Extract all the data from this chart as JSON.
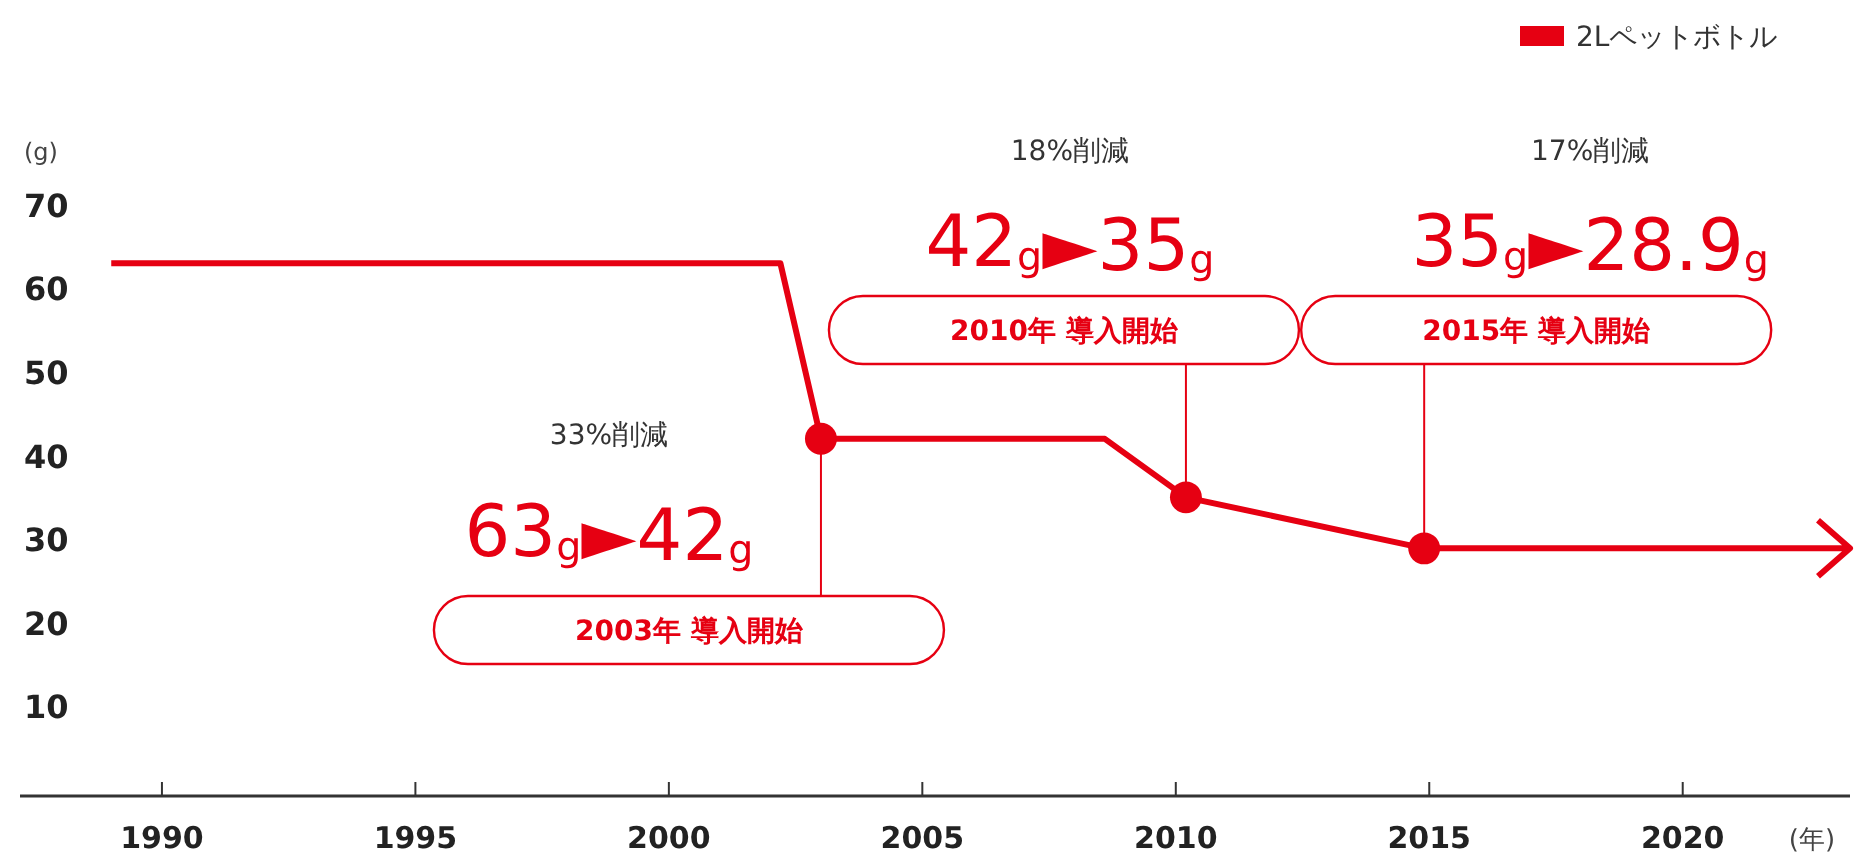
{
  "chart_data": {
    "type": "line",
    "xlabel": "(年)",
    "ylabel": "(g)",
    "xlim": [
      1987.2,
      2023.3
    ],
    "xticks": [
      1990,
      1995,
      2000,
      2005,
      2010,
      2015,
      2020
    ],
    "ylim": [
      0,
      94
    ],
    "yticks": [
      10,
      20,
      30,
      40,
      50,
      60,
      70
    ],
    "grid": false,
    "legend": "top right",
    "series": [
      {
        "name": "2Lペットボトル",
        "color": "#e60012",
        "marker": "none",
        "x": [
          1989,
          2002.2,
          2003,
          2008.6,
          2010.2,
          2014.9
        ],
        "values": [
          63,
          63,
          42,
          42,
          35,
          28.9
        ]
      },
      {
        "type": "scatter",
        "color": "#e60012",
        "marker": "circle",
        "x": [
          2003,
          2010.2,
          2014.9
        ],
        "values": [
          42,
          35,
          28.9
        ]
      }
    ],
    "annotations": [
      "33%削減",
      "63$_{g}$►42$_{g}$",
      {
        "text": "2003年 導入開始",
        "x": 2003,
        "y": 42
      },
      "18%削減",
      "42$_{g}$►35$_{g}$",
      {
        "text": "2010年 導入開始",
        "x": 2010.2,
        "y": 35
      },
      "17%削減",
      "35$_{g}$►28.9$_{g}$",
      {
        "text": "2015年 導入開始",
        "x": 2014.9,
        "y": 28.9
      }
    ]
  }
}
